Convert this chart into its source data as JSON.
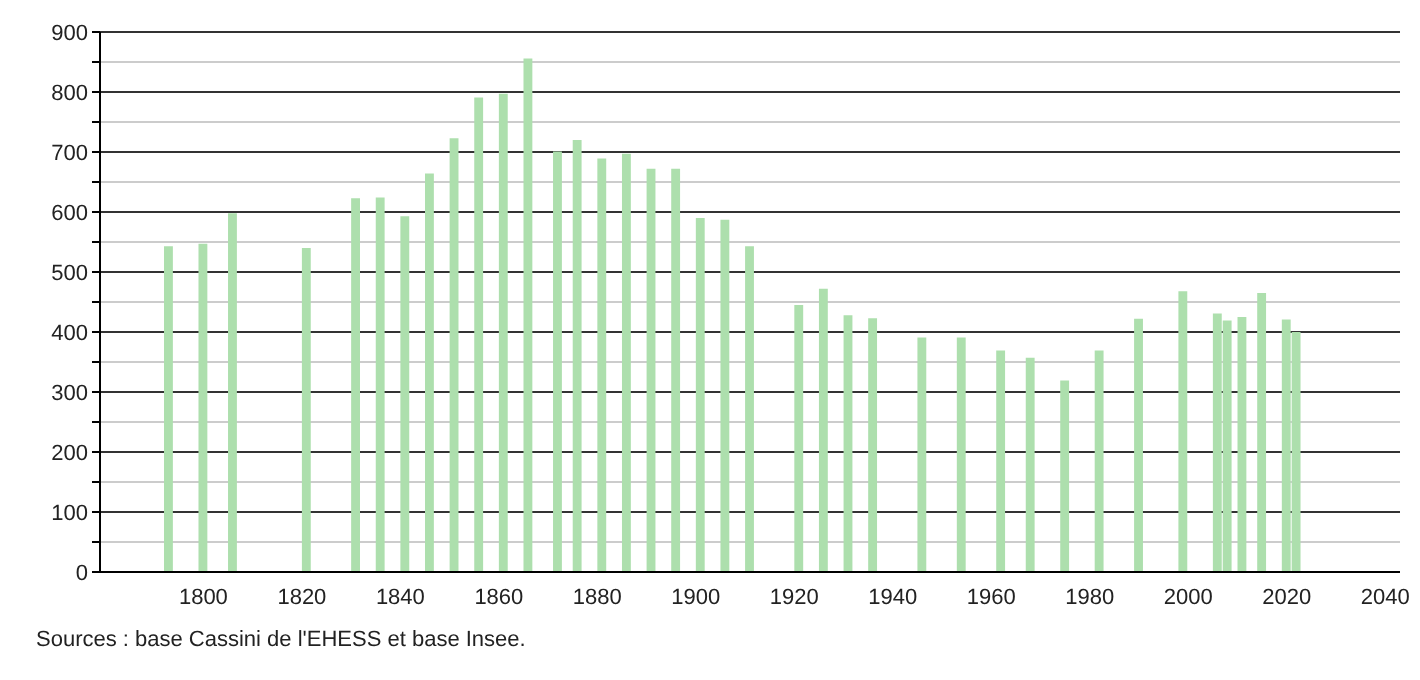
{
  "chart_data": {
    "type": "bar",
    "x": [
      1793,
      1800,
      1806,
      1821,
      1831,
      1836,
      1841,
      1846,
      1851,
      1856,
      1861,
      1866,
      1872,
      1876,
      1881,
      1886,
      1891,
      1896,
      1901,
      1906,
      1911,
      1921,
      1926,
      1931,
      1936,
      1946,
      1954,
      1962,
      1968,
      1975,
      1982,
      1990,
      1999,
      2006,
      2008,
      2011,
      2015,
      2020,
      2022
    ],
    "values": [
      543,
      547,
      598,
      540,
      623,
      624,
      593,
      664,
      723,
      791,
      797,
      856,
      701,
      720,
      689,
      697,
      672,
      672,
      590,
      587,
      543,
      445,
      472,
      428,
      423,
      391,
      391,
      369,
      357,
      319,
      369,
      422,
      468,
      431,
      419,
      425,
      465,
      421,
      400
    ],
    "color": "#addfad",
    "xlim": [
      1779,
      2043
    ],
    "xticks": [
      1800,
      1820,
      1840,
      1860,
      1880,
      1900,
      1920,
      1940,
      1960,
      1980,
      2000,
      2020,
      2040
    ],
    "ylim": [
      0,
      900
    ],
    "yticks": [
      0,
      {
        "value": 50,
        "label": null
      },
      100,
      {
        "value": 150,
        "label": null
      },
      200,
      {
        "value": 250,
        "label": null
      },
      300,
      {
        "value": 350,
        "label": null
      },
      400,
      {
        "value": 450,
        "label": null
      },
      500,
      {
        "value": 550,
        "label": null
      },
      600,
      {
        "value": 650,
        "label": null
      },
      700,
      {
        "value": 750,
        "label": null
      },
      800,
      {
        "value": 850,
        "label": null
      },
      900
    ],
    "grid": "y",
    "annotations": [
      "Sources : base Cassini de l'EHESS et base Insee."
    ]
  }
}
